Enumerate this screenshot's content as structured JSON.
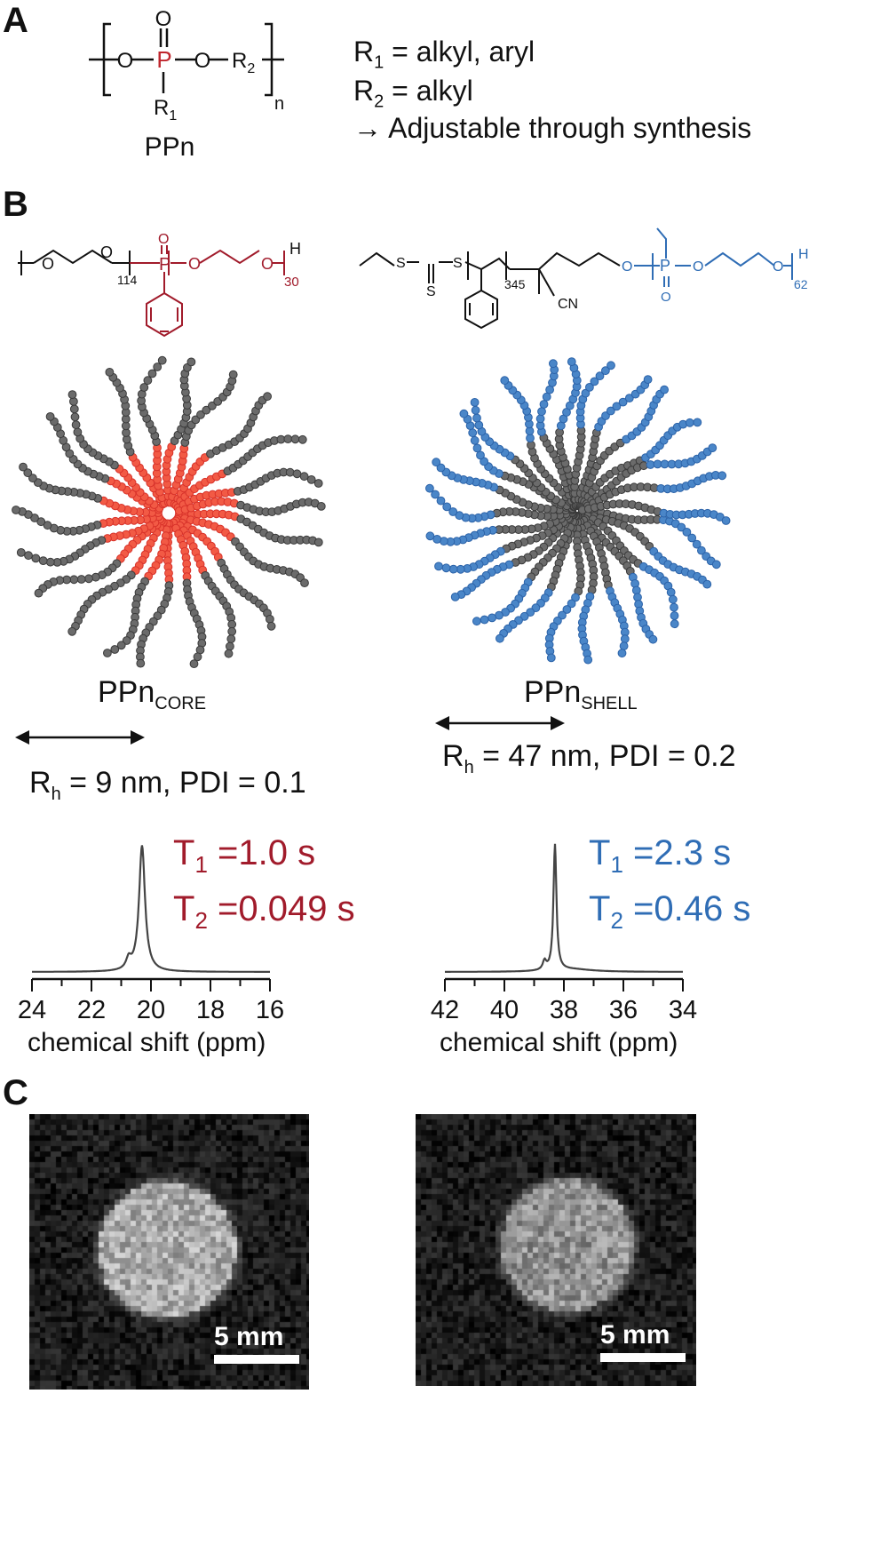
{
  "panel_a": {
    "letter": "A",
    "structure": {
      "o_top": "O",
      "o_left": "O",
      "p": "P",
      "o_right": "O",
      "r2": "R",
      "r2_sub": "2",
      "r1": "R",
      "r1_sub": "1",
      "n": "n",
      "name": "PPn"
    },
    "legend": {
      "line1_r": "R",
      "line1_sub": "1",
      "line1_text": " = alkyl, aryl",
      "line2_r": "R",
      "line2_sub": "2",
      "line2_text": " = alkyl",
      "line3_arrow": "→",
      "line3_text": " Adjustable through synthesis"
    }
  },
  "panel_b": {
    "letter": "B",
    "core": {
      "structure": {
        "o1": "O",
        "o2": "O",
        "n1": "114",
        "p": "P",
        "o_top": "O",
        "o3": "O",
        "o4": "O",
        "n2": "30",
        "h": "H"
      },
      "label_main": "PPn",
      "label_sub": "CORE",
      "rh_r": "R",
      "rh_sub": "h",
      "rh_text": " = 9 nm, PDI = 0.1",
      "t1_t": "T",
      "t1_sub": "1",
      "t1_text": " =1.0 s",
      "t2_t": "T",
      "t2_sub": "2",
      "t2_text": " =0.049 s",
      "color": "#a11b2b",
      "core_bead_color": "#f25a45"
    },
    "shell": {
      "structure": {
        "s1": "S",
        "s2": "S",
        "s3": "S",
        "n1": "345",
        "cn": "CN",
        "o1": "O",
        "p": "P",
        "o_bot": "O",
        "o2": "O",
        "o3": "O",
        "n2": "62",
        "h": "H"
      },
      "label_main": "PPn",
      "label_sub": "SHELL",
      "rh_r": "R",
      "rh_sub": "h",
      "rh_text": " = 47 nm, PDI = 0.2",
      "t1_t": "T",
      "t1_sub": "1",
      "t1_text": " =2.3 s",
      "t2_t": "T",
      "t2_sub": "2",
      "t2_text": " =0.46 s",
      "color": "#2f6db5",
      "shell_bead_color": "#4a86c8"
    }
  },
  "spectra": [
    {
      "xlabel": "chemical shift (ppm)",
      "ticks": [
        "24",
        "22",
        "20",
        "18",
        "16"
      ],
      "xlim": [
        24,
        16
      ],
      "peak_ppm": 20.3
    },
    {
      "xlabel": "chemical shift (ppm)",
      "ticks": [
        "42",
        "40",
        "38",
        "36",
        "34"
      ],
      "xlim": [
        42,
        34
      ],
      "peak_ppm": 38.3
    }
  ],
  "panel_c": {
    "letter": "C",
    "scalebar_left": "5 mm",
    "scalebar_right": "5 mm"
  }
}
